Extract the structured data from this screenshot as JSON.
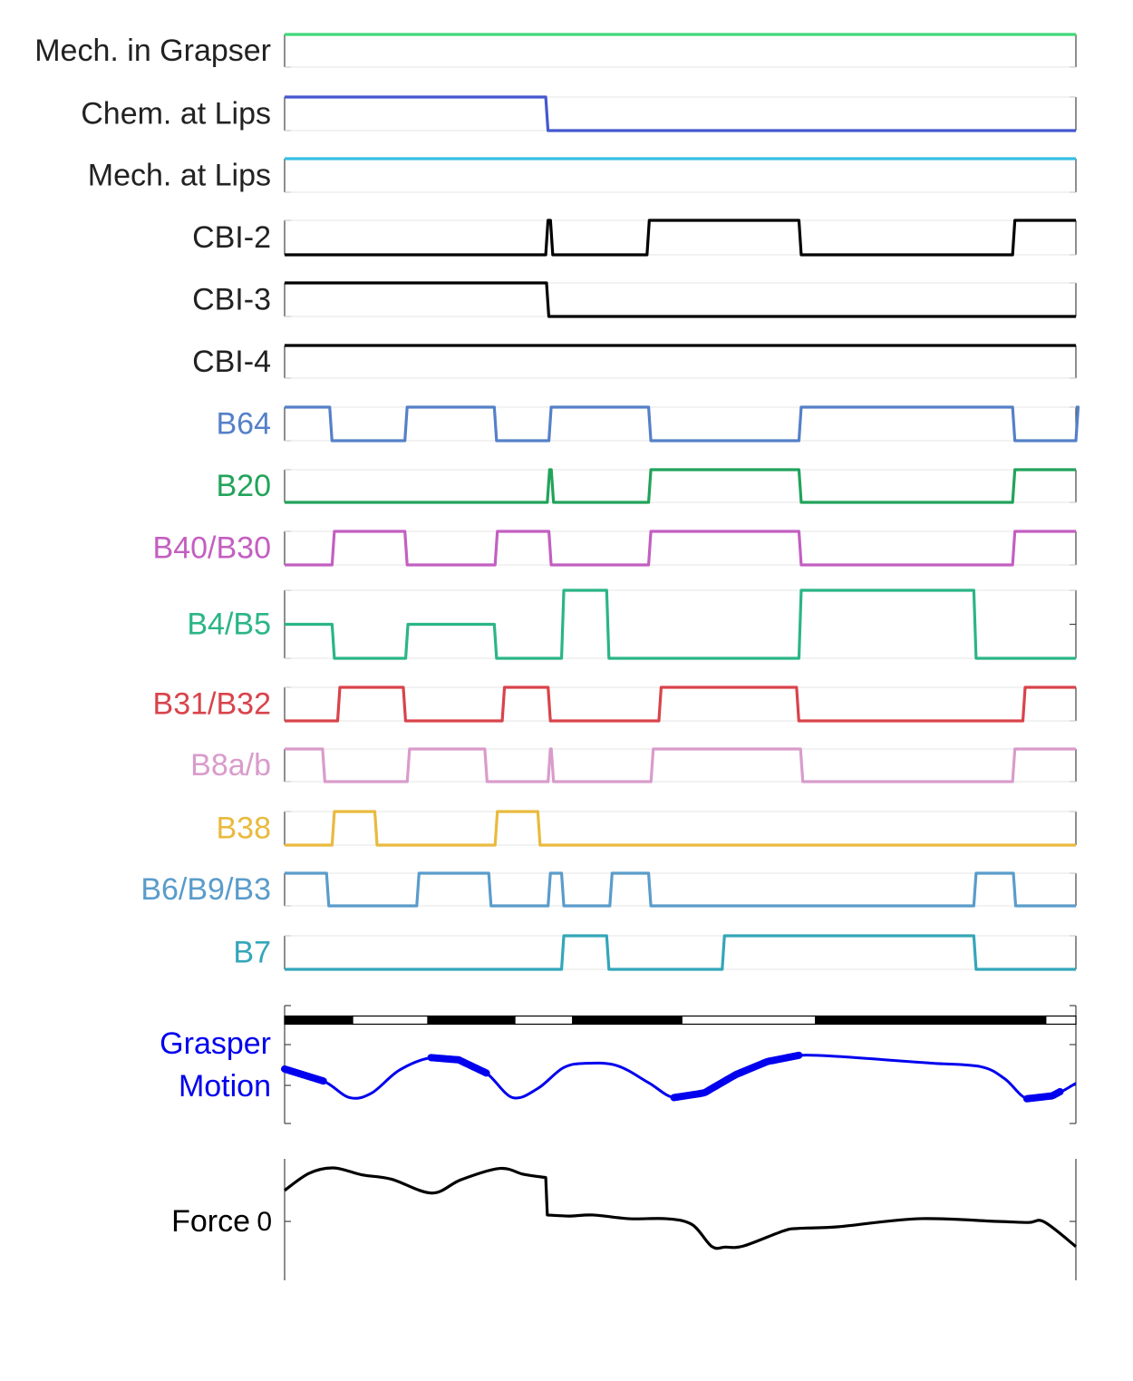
{
  "chart_data": {
    "type": "line",
    "title": "",
    "xlabel": "",
    "x_range": [
      0,
      100
    ],
    "series": [
      {
        "name": "Mech. in Grapser",
        "color": "#3ed97a",
        "kind": "binary",
        "init": 1,
        "transitions": []
      },
      {
        "name": "Chem. at Lips",
        "color": "#4557cf",
        "kind": "binary",
        "init": 1,
        "transitions": [
          33
        ]
      },
      {
        "name": "Mech. at Lips",
        "color": "#37bfe2",
        "kind": "binary",
        "init": 1,
        "transitions": []
      },
      {
        "name": "CBI-2",
        "color": "#000000",
        "kind": "binary",
        "init": 0,
        "transitions": [
          33,
          33.6,
          45.8,
          65,
          92
        ]
      },
      {
        "name": "CBI-3",
        "color": "#000000",
        "kind": "binary",
        "init": 1,
        "transitions": [
          33.1
        ]
      },
      {
        "name": "CBI-4",
        "color": "#000000",
        "kind": "binary",
        "init": 1,
        "transitions": []
      },
      {
        "name": "B64",
        "color": "#5580c8",
        "kind": "binary",
        "init": 1,
        "transitions": [
          5.7,
          15.2,
          26.5,
          33.4,
          46,
          65,
          92,
          100
        ]
      },
      {
        "name": "B20",
        "color": "#22a35a",
        "kind": "binary",
        "init": 0,
        "transitions": [
          33.2,
          33.7,
          46,
          65,
          92
        ]
      },
      {
        "name": "B40/B30",
        "color": "#c35fc1",
        "kind": "binary",
        "init": 0,
        "transitions": [
          6,
          15.2,
          26.6,
          33.4,
          46,
          65,
          92
        ]
      },
      {
        "name": "B4/B5",
        "color": "#2bb587",
        "kind": "b45",
        "transitions": [
          [
            0,
            0
          ],
          [
            6,
            -1
          ],
          [
            15.3,
            0
          ],
          [
            26.5,
            -1
          ],
          [
            35,
            1
          ],
          [
            40.7,
            -1
          ],
          [
            65,
            1
          ],
          [
            87.1,
            -1
          ]
        ]
      },
      {
        "name": "B31/B32",
        "color": "#d9434b",
        "kind": "binary",
        "init": 0,
        "transitions": [
          6.7,
          15,
          27.5,
          33.3,
          47.3,
          64.7,
          93.3
        ]
      },
      {
        "name": "B8a/b",
        "color": "#d99ccc",
        "kind": "binary",
        "init": 1,
        "transitions": [
          4.8,
          15.5,
          25.3,
          33.3,
          33.7,
          46.3,
          65.2,
          92
        ]
      },
      {
        "name": "B38",
        "color": "#e9ba3e",
        "kind": "binary",
        "init": 0,
        "transitions": [
          6,
          11.4,
          26.6,
          32
        ]
      },
      {
        "name": "B6/B9/B3",
        "color": "#5a9ccb",
        "kind": "binary",
        "init": 1,
        "transitions": [
          5.3,
          16.7,
          25.8,
          33.3,
          35,
          41.1,
          46,
          87.1,
          92.1
        ]
      },
      {
        "name": "B7",
        "color": "#34a6b9",
        "kind": "binary",
        "init": 0,
        "transitions": [
          35,
          40.7,
          55.3,
          87.1
        ]
      },
      {
        "name": "Grasper Motion",
        "color": "#0000ee",
        "kind": "curve",
        "points": [
          [
            0,
            0.62
          ],
          [
            4.9,
            0.41
          ],
          [
            8.2,
            0.12
          ],
          [
            11,
            0.2
          ],
          [
            14.5,
            0.6
          ],
          [
            18.5,
            0.82
          ],
          [
            22,
            0.78
          ],
          [
            25.5,
            0.55
          ],
          [
            28.8,
            0.12
          ],
          [
            32,
            0.28
          ],
          [
            35.2,
            0.64
          ],
          [
            38,
            0.72
          ],
          [
            42,
            0.68
          ],
          [
            46,
            0.38
          ],
          [
            49.2,
            0.12
          ],
          [
            53,
            0.2
          ],
          [
            57,
            0.52
          ],
          [
            61,
            0.75
          ],
          [
            65,
            0.86
          ],
          [
            70,
            0.84
          ],
          [
            76,
            0.78
          ],
          [
            82,
            0.72
          ],
          [
            88,
            0.66
          ],
          [
            91,
            0.45
          ],
          [
            93.8,
            0.1
          ],
          [
            97,
            0.15
          ],
          [
            100,
            0.37
          ]
        ],
        "thick_ranges": [
          [
            0,
            4.9
          ],
          [
            18.5,
            25.5
          ],
          [
            49.2,
            65
          ],
          [
            93.8,
            98
          ]
        ],
        "bar_segments": [
          [
            0,
            8.6,
            "black"
          ],
          [
            8.6,
            18.1,
            "white"
          ],
          [
            18.1,
            29.1,
            "black"
          ],
          [
            29.1,
            36.4,
            "white"
          ],
          [
            36.4,
            50.2,
            "black"
          ],
          [
            50.2,
            67.1,
            "white"
          ],
          [
            67.1,
            96.2,
            "black"
          ],
          [
            96.2,
            100,
            "white"
          ]
        ]
      },
      {
        "name": "Force",
        "color": "#000000",
        "kind": "curve",
        "tick_label": "0",
        "points": [
          [
            0,
            0.58
          ],
          [
            3.1,
            0.9
          ],
          [
            6.2,
            1.0
          ],
          [
            9.8,
            0.87
          ],
          [
            13.5,
            0.79
          ],
          [
            18.6,
            0.53
          ],
          [
            22.3,
            0.78
          ],
          [
            27.2,
            0.99
          ],
          [
            30.2,
            0.88
          ],
          [
            33,
            0.82
          ],
          [
            33.2,
            0.12
          ],
          [
            36,
            0.1
          ],
          [
            39,
            0.12
          ],
          [
            43.6,
            0.05
          ],
          [
            48.3,
            0.05
          ],
          [
            51.5,
            -0.06
          ],
          [
            54,
            -0.47
          ],
          [
            55.7,
            -0.48
          ],
          [
            58,
            -0.46
          ],
          [
            63,
            -0.18
          ],
          [
            65,
            -0.13
          ],
          [
            70,
            -0.1
          ],
          [
            80,
            0.05
          ],
          [
            90,
            0.0
          ],
          [
            94,
            -0.02
          ],
          [
            96,
            -0.01
          ],
          [
            100,
            -0.47
          ]
        ]
      }
    ]
  }
}
